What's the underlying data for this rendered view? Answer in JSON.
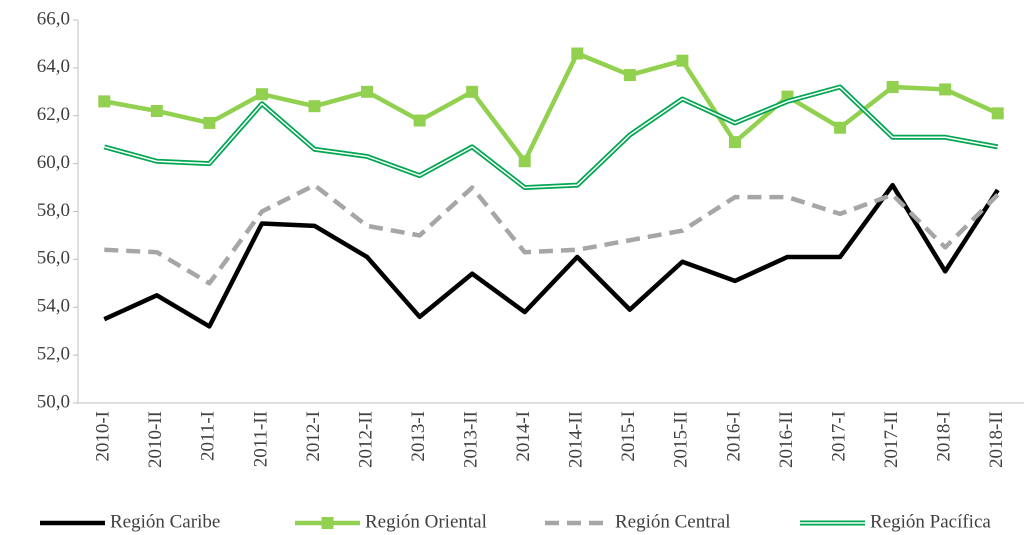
{
  "chart_data": {
    "type": "line",
    "categories": [
      "2010-I",
      "2010-II",
      "2011-I",
      "2011-II",
      "2012-I",
      "2012-II",
      "2013-I",
      "2013-II",
      "2014-I",
      "2014-II",
      "2015-I",
      "2015-II",
      "2016-I",
      "2016-II",
      "2017-I",
      "2017-II",
      "2018-I",
      "2018-II"
    ],
    "series": [
      {
        "name": "Región Caribe",
        "color": "#000000",
        "values": [
          53.5,
          54.5,
          53.2,
          57.5,
          57.4,
          56.1,
          53.6,
          55.4,
          53.8,
          56.1,
          53.9,
          55.9,
          55.1,
          56.1,
          56.1,
          59.1,
          55.5,
          58.9
        ]
      },
      {
        "name": "Región Oriental",
        "color": "#92d050",
        "marker": "square",
        "values": [
          62.6,
          62.2,
          61.7,
          62.9,
          62.4,
          63.0,
          61.8,
          63.0,
          60.1,
          64.6,
          63.7,
          64.3,
          60.9,
          62.8,
          61.5,
          63.2,
          63.1,
          62.1
        ]
      },
      {
        "name": "Región Central",
        "color": "#a6a6a6",
        "dashed": true,
        "values": [
          56.4,
          56.3,
          55.0,
          58.0,
          59.1,
          57.4,
          57.0,
          59.0,
          56.3,
          56.4,
          56.8,
          57.2,
          58.6,
          58.6,
          57.9,
          58.7,
          56.5,
          58.7
        ]
      },
      {
        "name": "Región Pacífica",
        "color": "#00a651",
        "double": true,
        "values": [
          60.7,
          60.1,
          60.0,
          62.5,
          60.6,
          60.3,
          59.5,
          60.7,
          59.0,
          59.1,
          61.2,
          62.7,
          61.7,
          62.6,
          63.2,
          61.1,
          61.1,
          60.7
        ]
      }
    ],
    "ylim": [
      50,
      66
    ],
    "yticks": [
      {
        "value": 50,
        "label": "50,0"
      },
      {
        "value": 52,
        "label": "52,0"
      },
      {
        "value": 54,
        "label": "54,0"
      },
      {
        "value": 56,
        "label": "56,0"
      },
      {
        "value": 58,
        "label": "58,0"
      },
      {
        "value": 60,
        "label": "60,0"
      },
      {
        "value": 62,
        "label": "62,0"
      },
      {
        "value": 64,
        "label": "64,0"
      },
      {
        "value": 66,
        "label": "66,0"
      }
    ],
    "legend": "bottom"
  }
}
